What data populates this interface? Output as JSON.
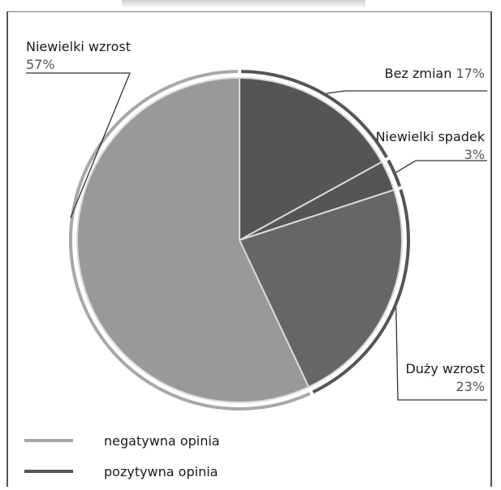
{
  "chart_data": {
    "type": "pie",
    "slices": [
      {
        "label": "Bez zmian",
        "value": 17,
        "pct_label": "17%",
        "group": "pozytywna opinia",
        "color": "#555555"
      },
      {
        "label": "Niewielki spadek",
        "value": 3,
        "pct_label": "3%",
        "group": "pozytywna opinia",
        "color": "#555555"
      },
      {
        "label": "Duży wzrost",
        "value": 23,
        "pct_label": "23%",
        "group": "pozytywna opinia",
        "color": "#666666"
      },
      {
        "label": "Niewielki wzrost",
        "value": 57,
        "pct_label": "57%",
        "group": "negatywna opinia",
        "color": "#999999"
      }
    ],
    "legend": {
      "placement": "bottom-left",
      "items": [
        {
          "label": "negatywna opinia",
          "color": "#a8a8a8"
        },
        {
          "label": "pozytywna opinia",
          "color": "#555555"
        }
      ]
    }
  }
}
